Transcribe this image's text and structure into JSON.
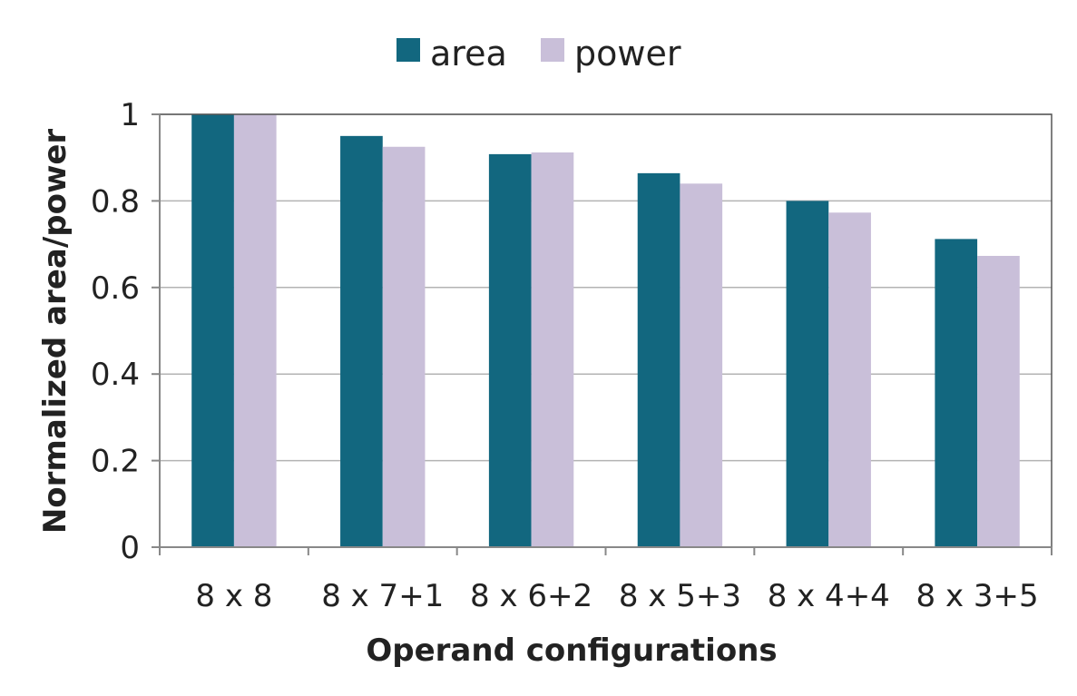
{
  "chart_data": {
    "type": "bar",
    "categories": [
      "8 x 8",
      "8 x 7+1",
      "8 x 6+2",
      "8 x 5+3",
      "8 x 4+4",
      "8 x 3+5"
    ],
    "series": [
      {
        "name": "area",
        "values": [
          1.0,
          0.95,
          0.908,
          0.864,
          0.8,
          0.712
        ],
        "color": "#12677f"
      },
      {
        "name": "power",
        "values": [
          1.0,
          0.925,
          0.912,
          0.84,
          0.773,
          0.673
        ],
        "color": "#c9bfd9"
      }
    ],
    "title": "",
    "xlabel": "Operand configurations",
    "ylabel": "Normalized area/power",
    "ylim": [
      0,
      1
    ],
    "yticks": [
      0,
      0.2,
      0.4,
      0.6,
      0.8,
      1
    ],
    "ytick_labels": [
      "0",
      "0.2",
      "0.4",
      "0.6",
      "0.8",
      "1"
    ],
    "grid": true,
    "legend_position": "top-center"
  }
}
